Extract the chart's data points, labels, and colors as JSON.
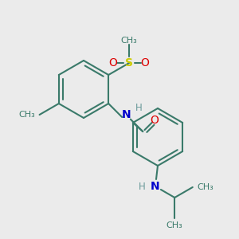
{
  "bg": "#ebebeb",
  "bc": "#3a7a6a",
  "bw": 1.5,
  "S_color": "#cccc00",
  "O_color": "#dd0000",
  "N_color": "#0000cc",
  "H_color": "#6a9a9a",
  "fig_w": 3.0,
  "fig_h": 3.0,
  "dpi": 100,
  "xlim": [
    0,
    3.0
  ],
  "ylim": [
    0,
    3.0
  ]
}
